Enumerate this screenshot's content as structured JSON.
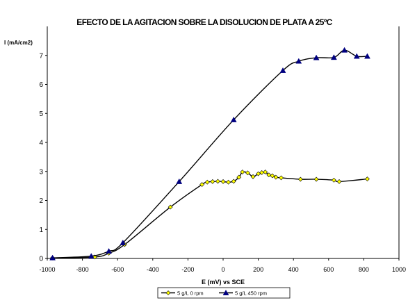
{
  "chart_data": {
    "type": "line",
    "title": "EFECTO DE LA AGITACION SOBRE LA DISOLUCION DE PLATA A 25ºC",
    "ylabel": "I (mA/cm2)",
    "xlabel": "E (mV) vs SCE",
    "xlim": [
      -1000,
      1000
    ],
    "ylim": [
      0,
      8
    ],
    "xticks": [
      -1000,
      -800,
      -600,
      -400,
      -200,
      0,
      200,
      400,
      600,
      800,
      1000
    ],
    "xtick_labels": [
      "-1000",
      "-800",
      "-600",
      "-400",
      "-200",
      "0",
      "200",
      "400",
      "600",
      "800",
      "1000"
    ],
    "yticks": [
      0,
      1,
      2,
      3,
      4,
      5,
      6,
      7
    ],
    "ytick_labels": [
      "0",
      "1",
      "2",
      "3",
      "4",
      "5",
      "6",
      "7"
    ],
    "grid": false,
    "legend_position": "bottom",
    "series": [
      {
        "name": "5 g/L 0 rpm",
        "color": "#000000",
        "marker_color": "#ffff00",
        "marker": "diamond",
        "x": [
          -970,
          -730,
          -650,
          -560,
          -300,
          -120,
          -90,
          -60,
          -30,
          0,
          30,
          60,
          90,
          110,
          140,
          170,
          200,
          220,
          240,
          260,
          280,
          300,
          330,
          440,
          530,
          630,
          660,
          820
        ],
        "y": [
          0.02,
          0.05,
          0.18,
          0.48,
          1.77,
          2.55,
          2.63,
          2.65,
          2.66,
          2.65,
          2.63,
          2.66,
          2.8,
          2.98,
          2.95,
          2.82,
          2.92,
          2.96,
          2.98,
          2.88,
          2.85,
          2.8,
          2.78,
          2.73,
          2.73,
          2.7,
          2.65,
          2.74
        ]
      },
      {
        "name": "5 g/L 450 rpm",
        "color": "#000000",
        "marker_color": "#000080",
        "marker": "triangle",
        "x": [
          -970,
          -750,
          -650,
          -570,
          -250,
          60,
          340,
          430,
          530,
          630,
          690,
          760,
          820
        ],
        "y": [
          0.02,
          0.08,
          0.25,
          0.54,
          2.65,
          4.78,
          6.48,
          6.8,
          6.92,
          6.93,
          7.18,
          6.97,
          6.97
        ]
      }
    ]
  }
}
